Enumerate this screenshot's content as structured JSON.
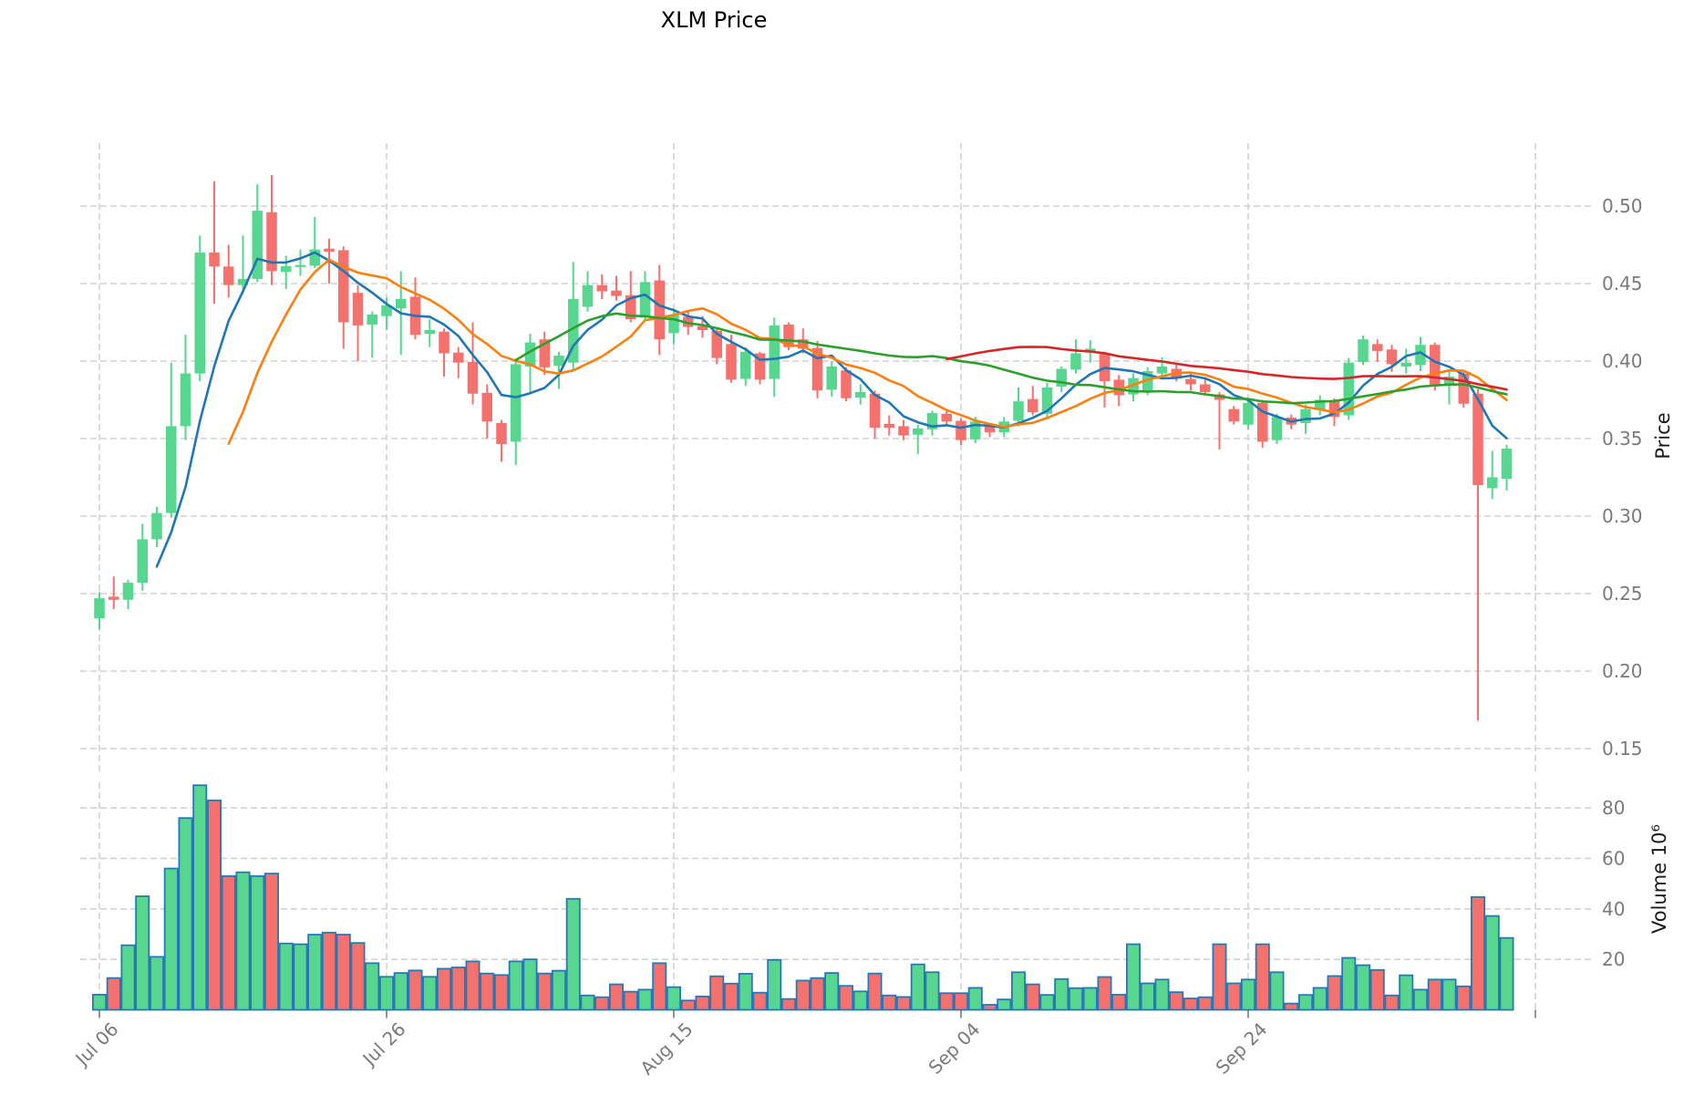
{
  "title": "XLM Price",
  "chart_data": {
    "type": "candlestick",
    "title": "XLM Price",
    "subpanel": "volume",
    "grid": "dashed",
    "legend_position": "none",
    "x_ticks": [
      {
        "index": 0,
        "label": "Jul 06"
      },
      {
        "index": 20,
        "label": "Jul 26"
      },
      {
        "index": 40,
        "label": "Aug 15"
      },
      {
        "index": 60,
        "label": "Sep 04"
      },
      {
        "index": 80,
        "label": "Sep 24"
      },
      {
        "index": 100,
        "label": ""
      }
    ],
    "price_axis": {
      "label": "Price",
      "ticks": [
        0.5,
        0.45,
        0.4,
        0.35,
        0.3,
        0.25,
        0.2,
        0.15
      ],
      "range": [
        0.138,
        0.545
      ]
    },
    "volume_axis": {
      "label": "Volume 10⁶",
      "ticks": [
        80,
        60,
        40,
        20
      ],
      "range": [
        0,
        95
      ],
      "unit": "millions"
    },
    "moving_averages": [
      {
        "window": 5,
        "color": "#1f77b4"
      },
      {
        "window": 10,
        "color": "#ff7f0e"
      },
      {
        "window": 30,
        "color": "#2ca02c"
      },
      {
        "window": 60,
        "color": "#d62728"
      }
    ],
    "colors": {
      "up": "#57d68f",
      "down": "#f4716e",
      "volume_edge": "#2878b5",
      "grid": "#d2d2d2",
      "tick_text": "#7a7a7a",
      "axis_label": "#1a1a1a",
      "title": "#000000",
      "background": "#ffffff"
    },
    "ohlc": [
      [
        0.234,
        0.251,
        0.227,
        0.247
      ],
      [
        0.248,
        0.261,
        0.24,
        0.246
      ],
      [
        0.246,
        0.259,
        0.24,
        0.257
      ],
      [
        0.257,
        0.295,
        0.252,
        0.285
      ],
      [
        0.285,
        0.306,
        0.28,
        0.302
      ],
      [
        0.302,
        0.399,
        0.299,
        0.358
      ],
      [
        0.358,
        0.417,
        0.349,
        0.392
      ],
      [
        0.392,
        0.481,
        0.387,
        0.47
      ],
      [
        0.47,
        0.516,
        0.437,
        0.461
      ],
      [
        0.461,
        0.475,
        0.441,
        0.449
      ],
      [
        0.449,
        0.481,
        0.445,
        0.453
      ],
      [
        0.453,
        0.514,
        0.451,
        0.497
      ],
      [
        0.496,
        0.52,
        0.449,
        0.458
      ],
      [
        0.4575,
        0.468,
        0.4465,
        0.4612
      ],
      [
        0.461,
        0.472,
        0.455,
        0.462
      ],
      [
        0.4615,
        0.493,
        0.46,
        0.472
      ],
      [
        0.4725,
        0.479,
        0.45,
        0.4705
      ],
      [
        0.4715,
        0.474,
        0.408,
        0.425
      ],
      [
        0.444,
        0.449,
        0.4,
        0.423
      ],
      [
        0.4235,
        0.432,
        0.402,
        0.43
      ],
      [
        0.429,
        0.441,
        0.42,
        0.436
      ],
      [
        0.434,
        0.458,
        0.404,
        0.44
      ],
      [
        0.4415,
        0.454,
        0.414,
        0.417
      ],
      [
        0.4175,
        0.427,
        0.409,
        0.42
      ],
      [
        0.419,
        0.421,
        0.39,
        0.405
      ],
      [
        0.4055,
        0.409,
        0.389,
        0.399
      ],
      [
        0.3995,
        0.425,
        0.372,
        0.379
      ],
      [
        0.3795,
        0.385,
        0.35,
        0.361
      ],
      [
        0.36,
        0.362,
        0.335,
        0.3465
      ],
      [
        0.348,
        0.4,
        0.333,
        0.398
      ],
      [
        0.3965,
        0.4176,
        0.38,
        0.412
      ],
      [
        0.414,
        0.419,
        0.391,
        0.396
      ],
      [
        0.397,
        0.406,
        0.382,
        0.4035
      ],
      [
        0.399,
        0.464,
        0.394,
        0.44
      ],
      [
        0.435,
        0.458,
        0.432,
        0.449
      ],
      [
        0.449,
        0.456,
        0.44,
        0.445
      ],
      [
        0.4455,
        0.455,
        0.439,
        0.442
      ],
      [
        0.4425,
        0.458,
        0.425,
        0.427
      ],
      [
        0.428,
        0.458,
        0.4265,
        0.451
      ],
      [
        0.452,
        0.462,
        0.404,
        0.414
      ],
      [
        0.418,
        0.434,
        0.411,
        0.43
      ],
      [
        0.4285,
        0.433,
        0.417,
        0.422
      ],
      [
        0.4225,
        0.429,
        0.415,
        0.42
      ],
      [
        0.4195,
        0.421,
        0.398,
        0.402
      ],
      [
        0.411,
        0.417,
        0.386,
        0.388
      ],
      [
        0.3885,
        0.409,
        0.384,
        0.406
      ],
      [
        0.405,
        0.406,
        0.385,
        0.388
      ],
      [
        0.3885,
        0.428,
        0.377,
        0.423
      ],
      [
        0.4235,
        0.425,
        0.407,
        0.409
      ],
      [
        0.414,
        0.421,
        0.405,
        0.408
      ],
      [
        0.4085,
        0.413,
        0.376,
        0.381
      ],
      [
        0.3815,
        0.4,
        0.377,
        0.3965
      ],
      [
        0.394,
        0.396,
        0.374,
        0.376
      ],
      [
        0.3765,
        0.385,
        0.372,
        0.38
      ],
      [
        0.379,
        0.381,
        0.35,
        0.357
      ],
      [
        0.3595,
        0.365,
        0.352,
        0.357
      ],
      [
        0.358,
        0.362,
        0.349,
        0.352
      ],
      [
        0.3525,
        0.359,
        0.34,
        0.3565
      ],
      [
        0.356,
        0.368,
        0.352,
        0.3665
      ],
      [
        0.366,
        0.369,
        0.358,
        0.361
      ],
      [
        0.3615,
        0.363,
        0.346,
        0.349
      ],
      [
        0.3495,
        0.364,
        0.347,
        0.361
      ],
      [
        0.3585,
        0.36,
        0.351,
        0.354
      ],
      [
        0.354,
        0.364,
        0.351,
        0.361
      ],
      [
        0.3615,
        0.383,
        0.358,
        0.374
      ],
      [
        0.3755,
        0.384,
        0.365,
        0.367
      ],
      [
        0.366,
        0.386,
        0.363,
        0.383
      ],
      [
        0.3835,
        0.3965,
        0.38,
        0.395
      ],
      [
        0.3945,
        0.414,
        0.392,
        0.405
      ],
      [
        0.4055,
        0.4135,
        0.399,
        0.408
      ],
      [
        0.4045,
        0.406,
        0.37,
        0.387
      ],
      [
        0.388,
        0.391,
        0.371,
        0.378
      ],
      [
        0.3785,
        0.392,
        0.374,
        0.389
      ],
      [
        0.381,
        0.396,
        0.378,
        0.3935
      ],
      [
        0.392,
        0.4025,
        0.389,
        0.3965
      ],
      [
        0.395,
        0.398,
        0.387,
        0.389
      ],
      [
        0.3885,
        0.392,
        0.381,
        0.385
      ],
      [
        0.385,
        0.389,
        0.378,
        0.38
      ],
      [
        0.3785,
        0.38,
        0.343,
        0.375
      ],
      [
        0.369,
        0.371,
        0.359,
        0.361
      ],
      [
        0.359,
        0.3755,
        0.356,
        0.373
      ],
      [
        0.373,
        0.375,
        0.344,
        0.348
      ],
      [
        0.349,
        0.366,
        0.3465,
        0.364
      ],
      [
        0.3635,
        0.3655,
        0.356,
        0.359
      ],
      [
        0.36,
        0.372,
        0.353,
        0.369
      ],
      [
        0.3685,
        0.378,
        0.365,
        0.375
      ],
      [
        0.374,
        0.376,
        0.358,
        0.364
      ],
      [
        0.365,
        0.402,
        0.362,
        0.399
      ],
      [
        0.3995,
        0.4165,
        0.3975,
        0.414
      ],
      [
        0.411,
        0.414,
        0.3995,
        0.4065
      ],
      [
        0.4075,
        0.4105,
        0.393,
        0.398
      ],
      [
        0.3965,
        0.408,
        0.392,
        0.399
      ],
      [
        0.3975,
        0.4155,
        0.3935,
        0.4105
      ],
      [
        0.4105,
        0.412,
        0.381,
        0.384
      ],
      [
        0.385,
        0.3935,
        0.372,
        0.39
      ],
      [
        0.392,
        0.394,
        0.37,
        0.3725
      ],
      [
        0.379,
        0.382,
        0.168,
        0.32
      ],
      [
        0.318,
        0.342,
        0.311,
        0.325
      ],
      [
        0.324,
        0.346,
        0.3165,
        0.3435
      ]
    ],
    "volume": [
      6.0,
      12.6,
      25.6,
      45.0,
      21.0,
      56.0,
      76.0,
      89.0,
      83.0,
      53.0,
      54.5,
      53.0,
      54.0,
      26.3,
      26.0,
      29.8,
      30.6,
      29.8,
      26.5,
      18.5,
      13.1,
      14.6,
      15.6,
      13.1,
      16.3,
      16.8,
      19.2,
      14.4,
      13.8,
      19.2,
      20.0,
      14.4,
      15.5,
      44.0,
      5.7,
      5.0,
      10.1,
      7.2,
      8.0,
      18.5,
      9.0,
      3.7,
      5.3,
      13.3,
      10.4,
      14.3,
      6.8,
      19.8,
      4.3,
      11.6,
      12.6,
      14.6,
      9.5,
      7.3,
      14.4,
      5.7,
      5.1,
      18.0,
      14.9,
      6.6,
      6.6,
      8.7,
      2.0,
      4.1,
      14.9,
      10.1,
      5.9,
      12.2,
      8.6,
      8.7,
      13.0,
      6.0,
      26.0,
      10.5,
      12.0,
      7.0,
      4.5,
      5.0,
      26.0,
      10.5,
      12.0,
      26.0,
      14.9,
      2.5,
      5.9,
      8.7,
      13.4,
      20.6,
      17.7,
      15.8,
      5.7,
      13.7,
      8.0,
      12.0,
      12.0,
      9.3,
      44.7,
      37.2,
      28.5
    ]
  }
}
